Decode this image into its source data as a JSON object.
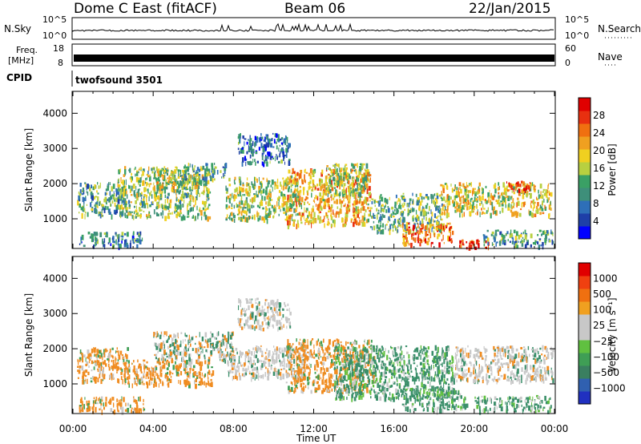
{
  "header": {
    "title": "Dome C East (fitACF)",
    "beam": "Beam 06",
    "date": "22/Jan/2015"
  },
  "summary_panels": {
    "nsky": {
      "label": "N.Sky",
      "ticks": [
        "10^5",
        "10^0"
      ]
    },
    "nsearch": {
      "label": "N.Search",
      "ticks": [
        "10^5",
        "10^0"
      ]
    },
    "freq": {
      "label_line1": "Freq.",
      "label_line2": "[MHz]",
      "ticks": [
        "18",
        "8"
      ]
    },
    "nave": {
      "label": "Nave",
      "ticks": [
        "60",
        "0"
      ]
    },
    "cpid": {
      "label": "CPID",
      "value": "twofsound 3501"
    }
  },
  "chart_data": [
    {
      "type": "heatmap",
      "name": "power",
      "ylabel": "Slant Range [km]",
      "xlabel": "Time UT",
      "x_ticks": [
        "00:00",
        "04:00",
        "08:00",
        "12:00",
        "16:00",
        "20:00",
        "00:00"
      ],
      "y_ticks": [
        "1000",
        "2000",
        "3000",
        "4000"
      ],
      "ylim": [
        180,
        4600
      ],
      "xlim_hours": [
        0,
        24
      ],
      "colorbar": {
        "label": "Power [dB]",
        "ticks": [
          "28",
          "24",
          "20",
          "16",
          "12",
          "8",
          "4"
        ],
        "range": [
          0,
          30
        ],
        "colors": [
          "#0000ff",
          "#1e3fa8",
          "#2e6fb8",
          "#3e8f7a",
          "#3aa065",
          "#b8d040",
          "#f0d020",
          "#f0a020",
          "#f07010",
          "#e83010",
          "#e00000"
        ]
      },
      "clusters": [
        {
          "t": [
            0.2,
            2.6
          ],
          "r": [
            1100,
            2050
          ],
          "v": 11
        },
        {
          "t": [
            0.3,
            3.5
          ],
          "r": [
            250,
            650
          ],
          "v": 8
        },
        {
          "t": [
            2.2,
            6.8
          ],
          "r": [
            1050,
            2500
          ],
          "v": 14
        },
        {
          "t": [
            4.0,
            6.2
          ],
          "r": [
            1900,
            2400
          ],
          "v": 16
        },
        {
          "t": [
            5.5,
            7.6
          ],
          "r": [
            2100,
            2600
          ],
          "v": 10
        },
        {
          "t": [
            7.6,
            11.2
          ],
          "r": [
            1000,
            2200
          ],
          "v": 15
        },
        {
          "t": [
            8.2,
            10.8
          ],
          "r": [
            2600,
            3450
          ],
          "v": 7
        },
        {
          "t": [
            10.6,
            14.8
          ],
          "r": [
            850,
            2450
          ],
          "v": 20
        },
        {
          "t": [
            12.6,
            14.6
          ],
          "r": [
            1700,
            2600
          ],
          "v": 14
        },
        {
          "t": [
            14.8,
            18.4
          ],
          "r": [
            650,
            1750
          ],
          "v": 12
        },
        {
          "t": [
            16.4,
            18.9
          ],
          "r": [
            300,
            900
          ],
          "v": 24
        },
        {
          "t": [
            18.3,
            23.8
          ],
          "r": [
            1150,
            2050
          ],
          "v": 17
        },
        {
          "t": [
            19.2,
            20.8
          ],
          "r": [
            200,
            420
          ],
          "v": 29
        },
        {
          "t": [
            20.4,
            23.9
          ],
          "r": [
            250,
            700
          ],
          "v": 10
        },
        {
          "t": [
            21.6,
            22.8
          ],
          "r": [
            1800,
            2100
          ],
          "v": 27
        }
      ]
    },
    {
      "type": "heatmap",
      "name": "velocity",
      "ylabel": "Slant Range [km]",
      "xlabel": "Time UT",
      "x_ticks": [
        "00:00",
        "04:00",
        "08:00",
        "12:00",
        "16:00",
        "20:00",
        "00:00"
      ],
      "y_ticks": [
        "1000",
        "2000",
        "3000",
        "4000"
      ],
      "ylim": [
        180,
        4600
      ],
      "colorbar": {
        "label": "Velocity [m s⁻¹]",
        "ticks": [
          "1000",
          "500",
          "100",
          "25",
          "−25",
          "−100",
          "−500",
          "−1000"
        ],
        "colors": [
          "#2030c0",
          "#3060b0",
          "#3a7f60",
          "#3f9e55",
          "#60c040",
          "#c8c8c8",
          "#c8c8c8",
          "#f0a020",
          "#f07010",
          "#f04010",
          "#e00000"
        ]
      },
      "clusters": [
        {
          "t": [
            0.2,
            2.8
          ],
          "r": [
            1100,
            2050
          ],
          "v": "orange"
        },
        {
          "t": [
            0.3,
            3.6
          ],
          "r": [
            250,
            650
          ],
          "v": "orange"
        },
        {
          "t": [
            2.5,
            7.0
          ],
          "r": [
            1000,
            1700
          ],
          "v": "orange"
        },
        {
          "t": [
            4.0,
            8.0
          ],
          "r": [
            1700,
            2500
          ],
          "v": "mix"
        },
        {
          "t": [
            7.6,
            11.6
          ],
          "r": [
            1200,
            2100
          ],
          "v": "gray"
        },
        {
          "t": [
            8.2,
            10.8
          ],
          "r": [
            2600,
            3450
          ],
          "v": "gray"
        },
        {
          "t": [
            10.6,
            15.0
          ],
          "r": [
            800,
            2300
          ],
          "v": "orange"
        },
        {
          "t": [
            13.0,
            19.0
          ],
          "r": [
            600,
            2100
          ],
          "v": "green"
        },
        {
          "t": [
            16.4,
            19.6
          ],
          "r": [
            250,
            900
          ],
          "v": "green"
        },
        {
          "t": [
            19.0,
            23.9
          ],
          "r": [
            1100,
            2100
          ],
          "v": "gray"
        },
        {
          "t": [
            20.0,
            23.8
          ],
          "r": [
            250,
            700
          ],
          "v": "green"
        }
      ]
    }
  ]
}
